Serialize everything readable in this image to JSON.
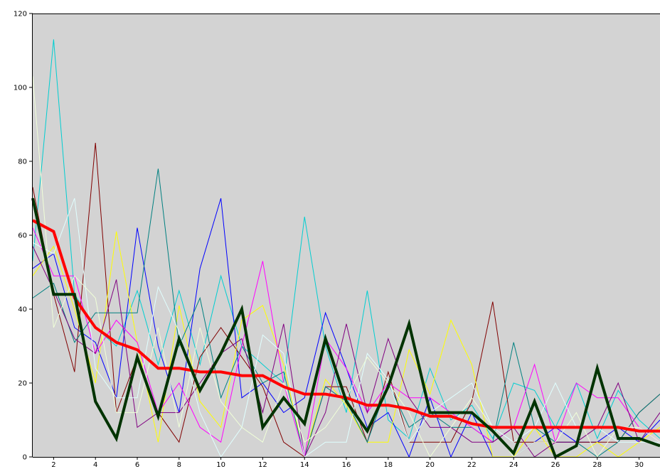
{
  "chart_data": {
    "type": "line",
    "title": "",
    "xlabel": "",
    "ylabel": "",
    "xlim": [
      1,
      31
    ],
    "ylim": [
      0,
      120
    ],
    "x": [
      1,
      2,
      3,
      4,
      5,
      6,
      7,
      8,
      9,
      10,
      11,
      12,
      13,
      14,
      15,
      16,
      17,
      18,
      19,
      20,
      21,
      22,
      23,
      24,
      25,
      26,
      27,
      28,
      29,
      30,
      31
    ],
    "x_ticks": [
      2,
      4,
      6,
      8,
      10,
      12,
      14,
      16,
      18,
      20,
      22,
      24,
      26,
      28,
      30
    ],
    "y_ticks": [
      0,
      20,
      40,
      60,
      80,
      100,
      120
    ],
    "grid": false,
    "background_color": "#d3d3d3",
    "series": [
      {
        "color": "#00ced1",
        "width": 1,
        "values": [
          53,
          113,
          44,
          35,
          30,
          45,
          25,
          45,
          25,
          49,
          30,
          25,
          20,
          65,
          30,
          12,
          45,
          10,
          5,
          24,
          10,
          14,
          5,
          20,
          18,
          8,
          20,
          5,
          18,
          10,
          5
        ]
      },
      {
        "color": "#0000ff",
        "width": 1,
        "values": [
          51,
          55,
          35,
          31,
          16,
          62,
          30,
          12,
          51,
          70,
          16,
          20,
          12,
          16,
          39,
          24,
          8,
          12,
          0,
          16,
          0,
          12,
          0,
          0,
          4,
          8,
          4,
          4,
          8,
          4,
          10
        ]
      },
      {
        "color": "#800000",
        "width": 1,
        "values": [
          73,
          44,
          23,
          85,
          12,
          27,
          12,
          4,
          27,
          35,
          27,
          19,
          4,
          0,
          19,
          19,
          4,
          23,
          4,
          4,
          4,
          15,
          42,
          4,
          4,
          4,
          4,
          4,
          4,
          12,
          17
        ]
      },
      {
        "color": "#ffff00",
        "width": 1,
        "values": [
          49,
          57,
          40,
          20,
          61,
          31,
          4,
          41,
          15,
          8,
          37,
          41,
          25,
          0,
          21,
          14,
          4,
          4,
          29,
          17,
          37,
          25,
          0,
          0,
          8,
          0,
          0,
          4,
          0,
          4,
          8
        ]
      },
      {
        "color": "#008080",
        "width": 1,
        "values": [
          43,
          47,
          31,
          39,
          39,
          39,
          78,
          30,
          43,
          16,
          30,
          20,
          23,
          0,
          19,
          15,
          4,
          20,
          8,
          12,
          8,
          8,
          4,
          31,
          8,
          4,
          4,
          0,
          4,
          12,
          17
        ]
      },
      {
        "color": "#ff00ff",
        "width": 1,
        "values": [
          62,
          49,
          49,
          28,
          37,
          31,
          12,
          20,
          8,
          4,
          30,
          53,
          20,
          0,
          32,
          24,
          12,
          20,
          16,
          16,
          12,
          8,
          4,
          8,
          25,
          4,
          20,
          16,
          16,
          8,
          4
        ]
      },
      {
        "color": "#800080",
        "width": 1,
        "values": [
          57,
          45,
          32,
          28,
          48,
          8,
          12,
          12,
          20,
          28,
          32,
          12,
          36,
          0,
          12,
          36,
          12,
          32,
          16,
          8,
          8,
          4,
          4,
          8,
          0,
          4,
          4,
          8,
          20,
          4,
          12
        ]
      },
      {
        "color": "#e0ffff",
        "width": 1,
        "values": [
          58,
          55,
          70,
          24,
          16,
          16,
          46,
          34,
          12,
          0,
          8,
          33,
          28,
          0,
          4,
          4,
          28,
          21,
          4,
          12,
          16,
          20,
          8,
          4,
          8,
          20,
          8,
          8,
          4,
          4,
          4
        ]
      },
      {
        "color": "#f0ffd8",
        "width": 1,
        "values": [
          103,
          35,
          49,
          43,
          12,
          12,
          35,
          8,
          35,
          15,
          8,
          4,
          20,
          4,
          8,
          16,
          27,
          20,
          12,
          0,
          8,
          16,
          8,
          0,
          4,
          4,
          12,
          0,
          8,
          8,
          4
        ]
      },
      {
        "color": "#ff0000",
        "width": 4,
        "values": [
          64,
          61,
          43,
          35,
          31,
          29,
          24,
          24,
          23,
          23,
          22,
          22,
          19,
          17,
          17,
          16,
          14,
          14,
          13,
          11,
          11,
          9,
          8,
          8,
          8,
          8,
          8,
          8,
          8,
          7,
          7
        ]
      },
      {
        "color": "#003300",
        "width": 4,
        "values": [
          70,
          44,
          44,
          15,
          5,
          27,
          11,
          32,
          18,
          28,
          40,
          8,
          16,
          9,
          32,
          15,
          7,
          19,
          36,
          12,
          12,
          12,
          7,
          1,
          15,
          0,
          3,
          24,
          5,
          5,
          3
        ]
      }
    ]
  }
}
